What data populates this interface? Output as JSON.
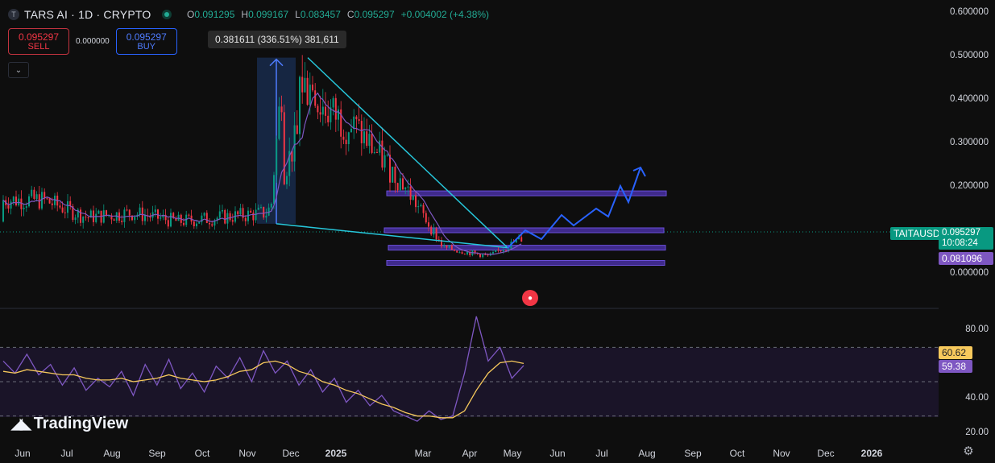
{
  "header": {
    "symbol_badge": "T",
    "title": "TARS AI · 1D · CRYPTO",
    "ohlc": {
      "o_key": "O",
      "o_val": "0.091295",
      "h_key": "H",
      "h_val": "0.099167",
      "l_key": "L",
      "l_val": "0.083457",
      "c_key": "C",
      "c_val": "0.095297",
      "change": "+0.004002 (+4.38%)"
    }
  },
  "trade": {
    "sell_price": "0.095297",
    "sell_label": "SELL",
    "spread": "0.000000",
    "buy_price": "0.095297",
    "buy_label": "BUY",
    "collapse_icon": "⌄"
  },
  "measure_label": "0.381611 (336.51%) 381,611",
  "price_axis": [
    "0.600000",
    "0.500000",
    "0.400000",
    "0.300000",
    "0.200000",
    "0.000000"
  ],
  "rsi_axis": [
    "80.00",
    "40.00",
    "20.00"
  ],
  "time_axis": [
    {
      "label": "Jun",
      "year": false
    },
    {
      "label": "Jul",
      "year": false
    },
    {
      "label": "Aug",
      "year": false
    },
    {
      "label": "Sep",
      "year": false
    },
    {
      "label": "Oct",
      "year": false
    },
    {
      "label": "Nov",
      "year": false
    },
    {
      "label": "Dec",
      "year": false
    },
    {
      "label": "2025",
      "year": true
    },
    {
      "label": "Mar",
      "year": false
    },
    {
      "label": "Apr",
      "year": false
    },
    {
      "label": "May",
      "year": false
    },
    {
      "label": "Jun",
      "year": false
    },
    {
      "label": "Jul",
      "year": false
    },
    {
      "label": "Aug",
      "year": false
    },
    {
      "label": "Sep",
      "year": false
    },
    {
      "label": "Oct",
      "year": false
    },
    {
      "label": "Nov",
      "year": false
    },
    {
      "label": "Dec",
      "year": false
    },
    {
      "label": "2026",
      "year": true
    }
  ],
  "tags": {
    "symbol": "TAITAUSD",
    "price": "0.095297",
    "countdown": "10:08:24",
    "level": "0.081096",
    "rsi_ma": "60.62",
    "rsi": "59.38"
  },
  "logo_text": "TradingView",
  "colors": {
    "background": "#0e0e0e",
    "up": "#089981",
    "down": "#f23645",
    "trendline": "#26c6da",
    "zone": "#3f2a8c",
    "projection": "#2962ff",
    "rsi": "#7e57c2",
    "rsi_ma": "#f7c95c",
    "ma": "#7e57c2"
  },
  "chart_data": [
    {
      "type": "candlestick",
      "title": "TARS AI · 1D · CRYPTO",
      "ylim": [
        0,
        0.6
      ],
      "x": [
        "2024-06",
        "2024-07",
        "2024-08",
        "2024-09",
        "2024-10",
        "2024-11",
        "2024-12",
        "2025-01",
        "2025-02",
        "2025-03",
        "2025-04",
        "2025-05"
      ],
      "close": [
        0.17,
        0.13,
        0.14,
        0.12,
        0.13,
        0.14,
        0.4,
        0.33,
        0.21,
        0.06,
        0.04,
        0.095297
      ],
      "annotations": {
        "measure": {
          "from": 0.115,
          "to": 0.497,
          "text": "0.381611 (336.51%) 381,611"
        },
        "support_zones": [
          0.185,
          0.1,
          0.06,
          0.025
        ],
        "trendline_from_high": [
          [
            "2024-12-10",
            0.497
          ],
          [
            "2025-04-30",
            0.06
          ]
        ],
        "trendline_from_low": [
          [
            "2024-11-12",
            0.115
          ],
          [
            "2025-04-30",
            0.06
          ]
        ],
        "projection_path": [
          [
            "2025-05-05",
            0.06
          ],
          [
            "2025-05-12",
            0.1
          ],
          [
            "2025-05-25",
            0.085
          ],
          [
            "2025-06-10",
            0.14
          ],
          [
            "2025-06-20",
            0.12
          ],
          [
            "2025-07-01",
            0.18
          ],
          [
            "2025-07-10",
            0.16
          ],
          [
            "2025-07-20",
            0.23
          ],
          [
            "2025-07-28",
            0.21
          ],
          [
            "2025-08-01",
            0.245
          ]
        ],
        "last_price": 0.095297,
        "level_label": 0.081096
      }
    },
    {
      "type": "line",
      "title": "RSI",
      "ylim": [
        20,
        90
      ],
      "series": [
        {
          "values": [
            62,
            55,
            66,
            54,
            60,
            48,
            58,
            45,
            52,
            47,
            56,
            42,
            60,
            48,
            63,
            46,
            55,
            44,
            59,
            52,
            64,
            50,
            68,
            55,
            62,
            48,
            57,
            44,
            52,
            38,
            45,
            36,
            42,
            33,
            30,
            27,
            33,
            28,
            30,
            55,
            88,
            62,
            70,
            52,
            59.38
          ]
        },
        {
          "values": [
            56,
            55,
            57,
            56,
            55,
            54,
            54,
            52,
            51,
            51,
            52,
            50,
            51,
            52,
            54,
            52,
            51,
            50,
            51,
            53,
            56,
            57,
            61,
            62,
            60,
            56,
            54,
            50,
            48,
            45,
            43,
            40,
            37,
            35,
            32,
            30,
            30,
            29,
            29,
            33,
            45,
            55,
            61,
            62,
            60.62
          ]
        }
      ],
      "levels": [
        70,
        50,
        30
      ]
    }
  ]
}
